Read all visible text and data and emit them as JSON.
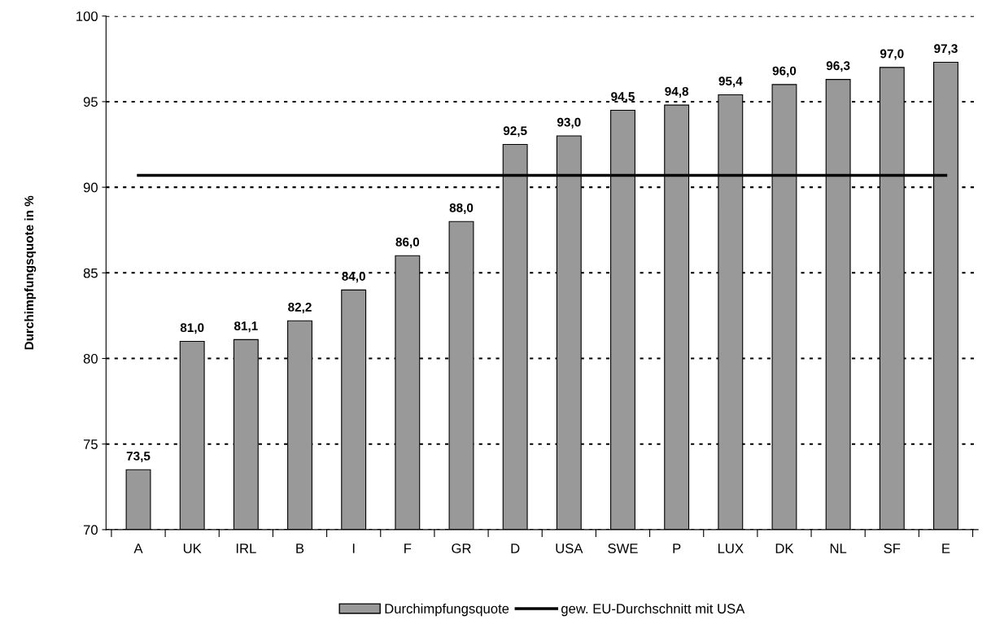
{
  "chart_data": {
    "type": "bar",
    "ylabel": "Durchimpfungsquote in %",
    "categories": [
      "A",
      "UK",
      "IRL",
      "B",
      "I",
      "F",
      "GR",
      "D",
      "USA",
      "SWE",
      "P",
      "LUX",
      "DK",
      "NL",
      "SF",
      "E"
    ],
    "series": [
      {
        "name": "Durchimpfungsquote",
        "color": "#999999",
        "values": [
          73.5,
          81.0,
          81.1,
          82.2,
          84.0,
          86.0,
          88.0,
          92.5,
          93.0,
          94.5,
          94.8,
          95.4,
          96.0,
          96.3,
          97.0,
          97.3
        ],
        "value_labels": [
          "73,5",
          "81,0",
          "81,1",
          "82,2",
          "84,0",
          "86,0",
          "88,0",
          "92,5",
          "93,0",
          "94,5",
          "94,8",
          "95,4",
          "96,0",
          "96,3",
          "97,0",
          "97,3"
        ]
      },
      {
        "name": "gew. EU-Durchschnitt mit USA",
        "type": "line",
        "color": "#000000",
        "values": [
          90.7,
          90.7,
          90.7,
          90.7,
          90.7,
          90.7,
          90.7,
          90.7,
          90.7,
          90.7,
          90.7,
          90.7,
          90.7,
          90.7,
          90.7,
          90.7
        ]
      }
    ],
    "ylim": [
      70,
      100
    ],
    "yticks": [
      70,
      75,
      80,
      85,
      90,
      95,
      100
    ],
    "grid": "y",
    "legend": "bottom"
  }
}
